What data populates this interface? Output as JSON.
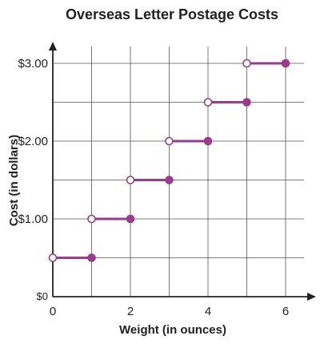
{
  "chart_data": {
    "type": "line",
    "title": "Overseas Letter Postage Costs",
    "xlabel": "Weight (in ounces)",
    "ylabel": "Cost (in dollars)",
    "xlim": [
      0,
      6.5
    ],
    "ylim": [
      0,
      3.0
    ],
    "x_ticks": [
      0,
      2,
      4,
      6
    ],
    "x_tick_labels": [
      "0",
      "2",
      "4",
      "6"
    ],
    "y_ticks": [
      0,
      1.0,
      2.0,
      3.0
    ],
    "y_tick_labels": [
      "$0",
      "$1.00",
      "$2.00",
      "$3.00"
    ],
    "grid": true,
    "step_function": true,
    "series": [
      {
        "color": "#9b3a8e",
        "segments": [
          {
            "x_start": 0,
            "x_end": 1,
            "y": 0.5,
            "start_closed": false,
            "end_closed": true
          },
          {
            "x_start": 1,
            "x_end": 2,
            "y": 1.0,
            "start_closed": false,
            "end_closed": true
          },
          {
            "x_start": 2,
            "x_end": 3,
            "y": 1.5,
            "start_closed": false,
            "end_closed": true
          },
          {
            "x_start": 3,
            "x_end": 4,
            "y": 2.0,
            "start_closed": false,
            "end_closed": true
          },
          {
            "x_start": 4,
            "x_end": 5,
            "y": 2.5,
            "start_closed": false,
            "end_closed": true
          },
          {
            "x_start": 5,
            "x_end": 6,
            "y": 3.0,
            "start_closed": false,
            "end_closed": true
          }
        ]
      }
    ]
  }
}
